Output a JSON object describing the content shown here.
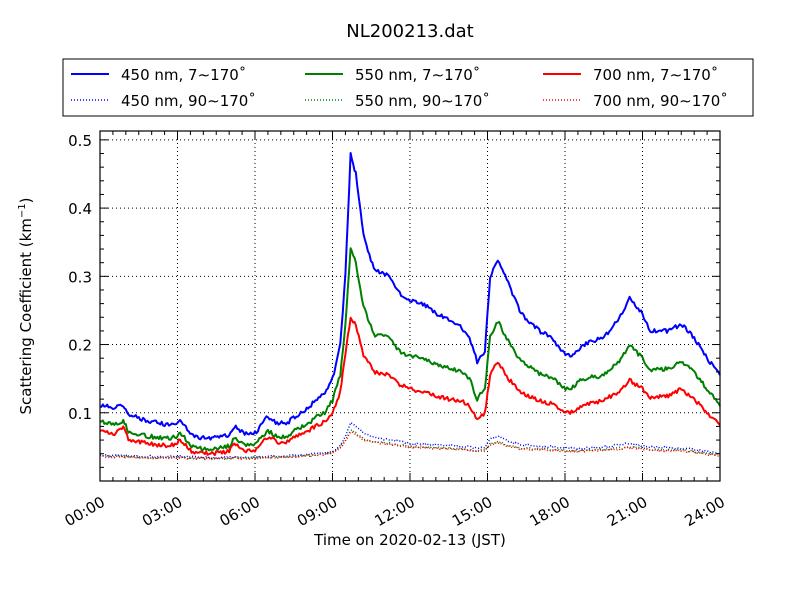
{
  "chart_data": {
    "type": "line",
    "title": "NL200213.dat",
    "xlabel": "Time on 2020-02-13 (JST)",
    "ylabel": "Scattering Coefficient (km",
    "ylabel_sup": "−1",
    "ylabel_end": ")",
    "xlim": [
      0,
      24
    ],
    "ylim": [
      0.0,
      0.513
    ],
    "grid": true,
    "legend_position": "top",
    "x_ticks": [
      0,
      3,
      6,
      9,
      12,
      15,
      18,
      21,
      24
    ],
    "x_tick_labels": [
      "00:00",
      "03:00",
      "06:00",
      "09:00",
      "12:00",
      "15:00",
      "18:00",
      "21:00",
      "24:00"
    ],
    "y_ticks": [
      0.1,
      0.2,
      0.3,
      0.4,
      0.5
    ],
    "y_tick_labels": [
      "0.1",
      "0.2",
      "0.3",
      "0.4",
      "0.5"
    ],
    "x": [
      0,
      0.5,
      0.9,
      1.1,
      1.5,
      2,
      2.5,
      2.9,
      3.1,
      3.6,
      4.0,
      4.5,
      5.0,
      5.2,
      5.6,
      6.0,
      6.5,
      6.8,
      7.2,
      7.6,
      8.0,
      8.4,
      8.7,
      9.0,
      9.3,
      9.5,
      9.7,
      9.9,
      10.2,
      10.6,
      11.2,
      11.6,
      12,
      12.5,
      13,
      13.5,
      14,
      14.3,
      14.6,
      14.9,
      15.1,
      15.4,
      15.8,
      16.3,
      17,
      17.5,
      17.9,
      18.2,
      18.7,
      19.5,
      20.1,
      20.5,
      21,
      21.3,
      22,
      22.5,
      23,
      23.5,
      24
    ],
    "series": [
      {
        "name": "450 nm, 7∼170˚",
        "color": "#0000ff",
        "style": "solid",
        "values": [
          0.112,
          0.108,
          0.112,
          0.098,
          0.092,
          0.087,
          0.083,
          0.084,
          0.088,
          0.066,
          0.063,
          0.064,
          0.067,
          0.08,
          0.069,
          0.07,
          0.095,
          0.086,
          0.084,
          0.096,
          0.105,
          0.12,
          0.128,
          0.15,
          0.2,
          0.3,
          0.48,
          0.45,
          0.36,
          0.31,
          0.3,
          0.275,
          0.265,
          0.26,
          0.245,
          0.237,
          0.225,
          0.21,
          0.175,
          0.19,
          0.3,
          0.325,
          0.29,
          0.245,
          0.22,
          0.21,
          0.19,
          0.182,
          0.2,
          0.21,
          0.24,
          0.268,
          0.245,
          0.22,
          0.22,
          0.23,
          0.21,
          0.18,
          0.155
        ]
      },
      {
        "name": "550 nm, 7∼170˚",
        "color": "#008000",
        "style": "solid",
        "values": [
          0.088,
          0.082,
          0.088,
          0.073,
          0.068,
          0.065,
          0.062,
          0.064,
          0.07,
          0.05,
          0.047,
          0.048,
          0.051,
          0.062,
          0.053,
          0.054,
          0.074,
          0.066,
          0.065,
          0.075,
          0.082,
          0.094,
          0.1,
          0.118,
          0.155,
          0.23,
          0.34,
          0.32,
          0.255,
          0.215,
          0.21,
          0.19,
          0.183,
          0.18,
          0.172,
          0.166,
          0.16,
          0.15,
          0.12,
          0.135,
          0.21,
          0.235,
          0.205,
          0.175,
          0.158,
          0.152,
          0.137,
          0.135,
          0.15,
          0.155,
          0.175,
          0.198,
          0.18,
          0.162,
          0.165,
          0.175,
          0.16,
          0.135,
          0.11
        ]
      },
      {
        "name": "700 nm, 7∼170˚",
        "color": "#ff0000",
        "style": "solid",
        "values": [
          0.075,
          0.068,
          0.078,
          0.062,
          0.057,
          0.054,
          0.052,
          0.054,
          0.06,
          0.042,
          0.04,
          0.041,
          0.043,
          0.055,
          0.045,
          0.046,
          0.065,
          0.058,
          0.056,
          0.066,
          0.072,
          0.082,
          0.087,
          0.1,
          0.13,
          0.185,
          0.24,
          0.23,
          0.185,
          0.16,
          0.155,
          0.142,
          0.135,
          0.13,
          0.125,
          0.12,
          0.118,
          0.11,
          0.09,
          0.1,
          0.155,
          0.175,
          0.15,
          0.13,
          0.118,
          0.113,
          0.103,
          0.1,
          0.112,
          0.118,
          0.132,
          0.148,
          0.135,
          0.122,
          0.125,
          0.135,
          0.12,
          0.1,
          0.082
        ]
      },
      {
        "name": "450 nm, 90∼170˚",
        "color": "#0000ff",
        "style": "dotted",
        "values": [
          0.038,
          0.037,
          0.038,
          0.037,
          0.036,
          0.036,
          0.035,
          0.036,
          0.036,
          0.035,
          0.035,
          0.034,
          0.035,
          0.035,
          0.035,
          0.036,
          0.036,
          0.036,
          0.037,
          0.038,
          0.039,
          0.04,
          0.041,
          0.044,
          0.052,
          0.065,
          0.085,
          0.08,
          0.07,
          0.064,
          0.06,
          0.058,
          0.055,
          0.054,
          0.053,
          0.052,
          0.051,
          0.05,
          0.047,
          0.05,
          0.062,
          0.066,
          0.058,
          0.053,
          0.051,
          0.05,
          0.049,
          0.048,
          0.048,
          0.05,
          0.053,
          0.055,
          0.052,
          0.05,
          0.049,
          0.048,
          0.046,
          0.043,
          0.04
        ]
      },
      {
        "name": "550 nm, 90∼170˚",
        "color": "#008000",
        "style": "dotted",
        "values": [
          0.037,
          0.036,
          0.036,
          0.035,
          0.035,
          0.034,
          0.034,
          0.034,
          0.035,
          0.033,
          0.033,
          0.033,
          0.033,
          0.034,
          0.034,
          0.034,
          0.035,
          0.035,
          0.035,
          0.036,
          0.037,
          0.038,
          0.039,
          0.042,
          0.05,
          0.06,
          0.075,
          0.07,
          0.062,
          0.057,
          0.055,
          0.053,
          0.051,
          0.05,
          0.049,
          0.048,
          0.047,
          0.046,
          0.044,
          0.046,
          0.055,
          0.058,
          0.052,
          0.048,
          0.047,
          0.046,
          0.045,
          0.044,
          0.045,
          0.046,
          0.048,
          0.05,
          0.048,
          0.046,
          0.045,
          0.045,
          0.043,
          0.04,
          0.038
        ]
      },
      {
        "name": "700 nm, 90∼170˚",
        "color": "#ff0000",
        "style": "dotted",
        "values": [
          0.036,
          0.035,
          0.036,
          0.035,
          0.034,
          0.034,
          0.034,
          0.034,
          0.034,
          0.033,
          0.033,
          0.033,
          0.033,
          0.034,
          0.033,
          0.034,
          0.035,
          0.034,
          0.035,
          0.036,
          0.037,
          0.038,
          0.039,
          0.041,
          0.048,
          0.058,
          0.072,
          0.068,
          0.06,
          0.056,
          0.054,
          0.052,
          0.05,
          0.049,
          0.048,
          0.047,
          0.046,
          0.045,
          0.043,
          0.045,
          0.053,
          0.056,
          0.051,
          0.047,
          0.046,
          0.045,
          0.044,
          0.043,
          0.044,
          0.045,
          0.047,
          0.049,
          0.047,
          0.045,
          0.044,
          0.044,
          0.042,
          0.039,
          0.037
        ]
      }
    ]
  }
}
